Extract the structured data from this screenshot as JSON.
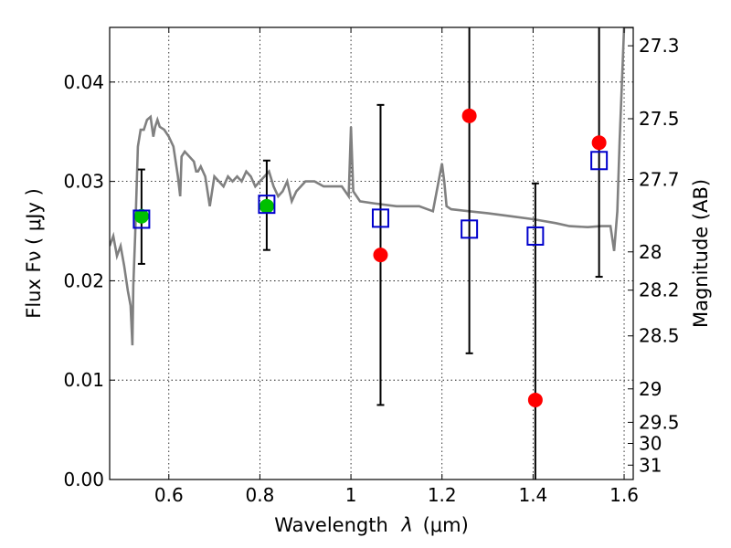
{
  "chart_data": {
    "type": "scatter",
    "title": "",
    "xlabel_text": "Wavelength",
    "xlabel_symbol": "λ",
    "xlabel_unit": "(μm)",
    "ylabel_left": "Flux  Fν  ( μJy )",
    "ylabel_right": "Magnitude (AB)",
    "xlim": [
      0.47,
      1.62
    ],
    "ylim": [
      0.0,
      0.0455
    ],
    "x_ticks": [
      0.6,
      0.8,
      1.0,
      1.2,
      1.4,
      1.6
    ],
    "x_tick_labels": [
      "0.6",
      "0.8",
      "1",
      "1.2",
      "1.4",
      "1.6"
    ],
    "y_ticks": [
      0.0,
      0.01,
      0.02,
      0.03,
      0.04
    ],
    "y_tick_labels": [
      "0.00",
      "0.01",
      "0.02",
      "0.03",
      "0.04"
    ],
    "right_ticks": [
      {
        "mag": 27.3,
        "label": "27.3"
      },
      {
        "mag": 27.5,
        "label": "27.5"
      },
      {
        "mag": 27.7,
        "label": "27.7"
      },
      {
        "mag": 28.0,
        "label": "28"
      },
      {
        "mag": 28.2,
        "label": "28.2"
      },
      {
        "mag": 28.5,
        "label": "28.5"
      },
      {
        "mag": 29.0,
        "label": "29"
      },
      {
        "mag": 29.5,
        "label": "29.5"
      },
      {
        "mag": 30.0,
        "label": "30"
      },
      {
        "mag": 31.0,
        "label": "31"
      }
    ],
    "grid": true,
    "colors": {
      "green": "#00c000",
      "red": "#ff0000",
      "model_square": "#0000cc",
      "model_sed": "#808080",
      "errorbar": "#000000"
    },
    "series": [
      {
        "marker": "green-circle",
        "points": [
          {
            "x": 0.54,
            "y": 0.0265,
            "yerr_low": 0.0217,
            "yerr_high": 0.0312
          },
          {
            "x": 0.815,
            "y": 0.0275,
            "yerr_low": 0.0231,
            "yerr_high": 0.0321
          }
        ]
      },
      {
        "marker": "red-circle",
        "points": [
          {
            "x": 1.065,
            "y": 0.0226,
            "yerr_low": 0.0075,
            "yerr_high": 0.0377
          },
          {
            "x": 1.26,
            "y": 0.0366,
            "yerr_low": 0.0127,
            "yerr_high": 0.0455
          },
          {
            "x": 1.405,
            "y": 0.008,
            "yerr_low": 0.0,
            "yerr_high": 0.0298
          },
          {
            "x": 1.545,
            "y": 0.0339,
            "yerr_low": 0.0204,
            "yerr_high": 0.0455
          }
        ]
      },
      {
        "marker": "blue-square",
        "points": [
          {
            "x": 0.54,
            "y": 0.0262
          },
          {
            "x": 0.815,
            "y": 0.0277
          },
          {
            "x": 1.065,
            "y": 0.0263
          },
          {
            "x": 1.26,
            "y": 0.0252
          },
          {
            "x": 1.405,
            "y": 0.0245
          },
          {
            "x": 1.545,
            "y": 0.0321
          }
        ]
      },
      {
        "marker": "gray-line",
        "x": [
          0.47,
          0.478,
          0.486,
          0.494,
          0.502,
          0.51,
          0.516,
          0.52,
          0.522,
          0.526,
          0.532,
          0.538,
          0.545,
          0.552,
          0.56,
          0.566,
          0.57,
          0.575,
          0.58,
          0.59,
          0.6,
          0.61,
          0.62,
          0.625,
          0.628,
          0.635,
          0.645,
          0.655,
          0.66,
          0.664,
          0.67,
          0.68,
          0.69,
          0.7,
          0.71,
          0.72,
          0.73,
          0.74,
          0.75,
          0.76,
          0.77,
          0.78,
          0.79,
          0.8,
          0.81,
          0.82,
          0.83,
          0.84,
          0.85,
          0.86,
          0.87,
          0.88,
          0.9,
          0.92,
          0.94,
          0.96,
          0.98,
          0.995,
          1.0,
          1.005,
          1.02,
          1.05,
          1.1,
          1.15,
          1.18,
          1.2,
          1.205,
          1.21,
          1.22,
          1.26,
          1.3,
          1.35,
          1.4,
          1.45,
          1.48,
          1.52,
          1.55,
          1.57,
          1.578,
          1.585,
          1.59,
          1.6,
          1.62
        ],
        "y": [
          0.0235,
          0.0245,
          0.0225,
          0.0235,
          0.0215,
          0.019,
          0.0175,
          0.0135,
          0.0195,
          0.0245,
          0.0335,
          0.0352,
          0.0352,
          0.0362,
          0.0365,
          0.0345,
          0.0355,
          0.0362,
          0.0355,
          0.0352,
          0.0345,
          0.0335,
          0.0305,
          0.0285,
          0.0325,
          0.033,
          0.0325,
          0.032,
          0.031,
          0.031,
          0.0315,
          0.0305,
          0.0275,
          0.0305,
          0.03,
          0.0295,
          0.0305,
          0.03,
          0.0305,
          0.03,
          0.031,
          0.0305,
          0.0295,
          0.03,
          0.0305,
          0.031,
          0.0295,
          0.0285,
          0.029,
          0.03,
          0.028,
          0.029,
          0.03,
          0.03,
          0.0295,
          0.0295,
          0.0295,
          0.0285,
          0.0355,
          0.029,
          0.028,
          0.0278,
          0.0275,
          0.0275,
          0.027,
          0.0318,
          0.03,
          0.0275,
          0.0272,
          0.027,
          0.0268,
          0.0265,
          0.0262,
          0.0258,
          0.0255,
          0.0254,
          0.0255,
          0.0255,
          0.023,
          0.027,
          0.034,
          0.0455,
          0.0455
        ]
      }
    ]
  }
}
